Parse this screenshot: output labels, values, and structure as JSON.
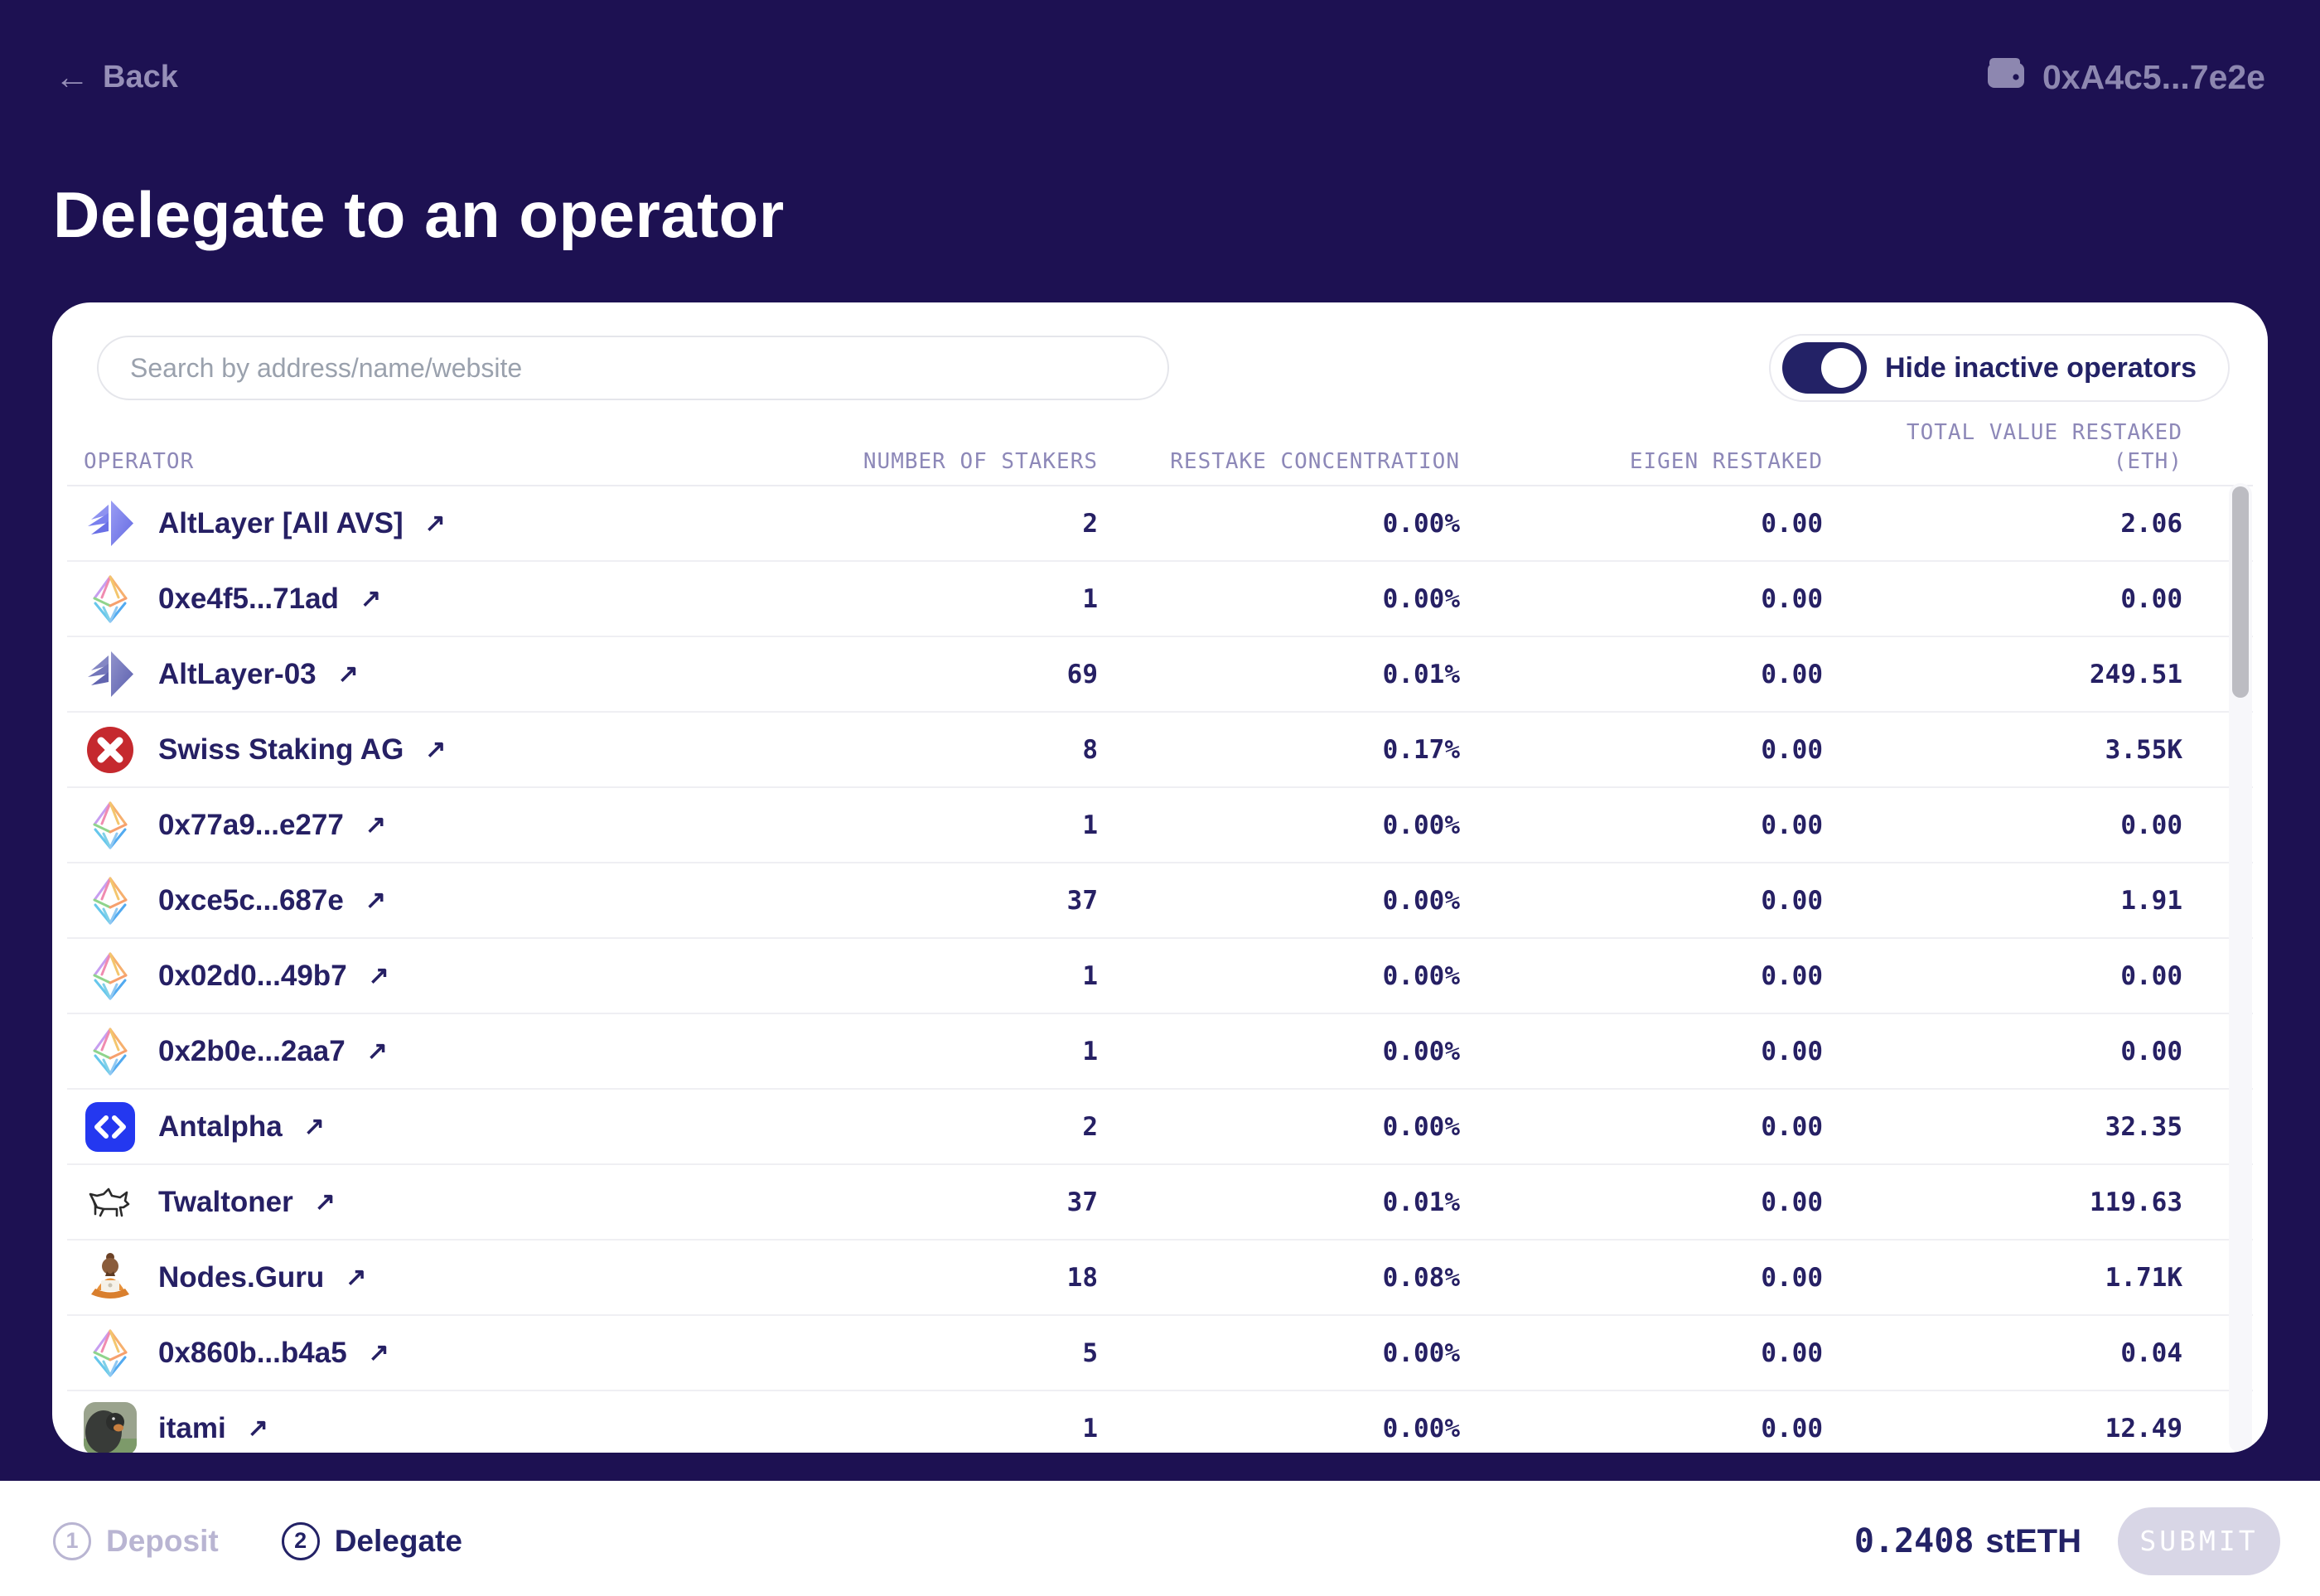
{
  "header": {
    "back_label": "Back",
    "wallet_address": "0xA4c5...7e2e"
  },
  "page_title": "Delegate to an operator",
  "search": {
    "placeholder": "Search by address/name/website"
  },
  "filter_toggle": {
    "label": "Hide inactive operators",
    "enabled": true
  },
  "table": {
    "columns": [
      "OPERATOR",
      "NUMBER OF STAKERS",
      "RESTAKE CONCENTRATION",
      "EIGEN RESTAKED",
      "TOTAL VALUE RESTAKED\n(ETH)"
    ],
    "rows": [
      {
        "name": "AltLayer [All AVS]",
        "icon": "altlayer-icon",
        "link_icon": "external-link-icon",
        "stakers": "2",
        "concentration": "0.00%",
        "eigen": "0.00",
        "total": "2.06"
      },
      {
        "name": "0xe4f5...71ad",
        "icon": "eth-icon",
        "link_icon": "external-link-icon",
        "stakers": "1",
        "concentration": "0.00%",
        "eigen": "0.00",
        "total": "0.00"
      },
      {
        "name": "AltLayer-03",
        "icon": "altlayer-alt-icon",
        "link_icon": "external-link-icon",
        "stakers": "69",
        "concentration": "0.01%",
        "eigen": "0.00",
        "total": "249.51"
      },
      {
        "name": "Swiss Staking AG",
        "icon": "swiss-staking-icon",
        "link_icon": "external-link-icon",
        "stakers": "8",
        "concentration": "0.17%",
        "eigen": "0.00",
        "total": "3.55K"
      },
      {
        "name": "0x77a9...e277",
        "icon": "eth-icon",
        "link_icon": "external-link-icon",
        "stakers": "1",
        "concentration": "0.00%",
        "eigen": "0.00",
        "total": "0.00"
      },
      {
        "name": "0xce5c...687e",
        "icon": "eth-icon",
        "link_icon": "external-link-icon",
        "stakers": "37",
        "concentration": "0.00%",
        "eigen": "0.00",
        "total": "1.91"
      },
      {
        "name": "0x02d0...49b7",
        "icon": "eth-icon",
        "link_icon": "external-link-icon",
        "stakers": "1",
        "concentration": "0.00%",
        "eigen": "0.00",
        "total": "0.00"
      },
      {
        "name": "0x2b0e...2aa7",
        "icon": "eth-icon",
        "link_icon": "external-link-icon",
        "stakers": "1",
        "concentration": "0.00%",
        "eigen": "0.00",
        "total": "0.00"
      },
      {
        "name": "Antalpha",
        "icon": "antalpha-icon",
        "link_icon": "external-link-icon",
        "stakers": "2",
        "concentration": "0.00%",
        "eigen": "0.00",
        "total": "32.35"
      },
      {
        "name": "Twaltoner",
        "icon": "twaltoner-icon",
        "link_icon": "external-link-icon",
        "stakers": "37",
        "concentration": "0.01%",
        "eigen": "0.00",
        "total": "119.63"
      },
      {
        "name": "Nodes.Guru",
        "icon": "nodes-guru-icon",
        "link_icon": "external-link-icon",
        "stakers": "18",
        "concentration": "0.08%",
        "eigen": "0.00",
        "total": "1.71K"
      },
      {
        "name": "0x860b...b4a5",
        "icon": "eth-icon",
        "link_icon": "external-link-icon",
        "stakers": "5",
        "concentration": "0.00%",
        "eigen": "0.00",
        "total": "0.04"
      },
      {
        "name": "itami",
        "icon": "itami-icon",
        "link_icon": "external-link-icon",
        "stakers": "1",
        "concentration": "0.00%",
        "eigen": "0.00",
        "total": "12.49"
      }
    ]
  },
  "footer": {
    "steps": [
      {
        "number": "1",
        "label": "Deposit",
        "active": false
      },
      {
        "number": "2",
        "label": "Delegate",
        "active": true
      }
    ],
    "balance_amount": "0.2408",
    "balance_unit": "stETH",
    "submit_label": "SUBMIT"
  },
  "colors": {
    "background": "#1d1152",
    "accent_navy": "#232266",
    "muted_lavender": "#8d87b0",
    "swiss_red": "#c5292e",
    "antalpha_blue": "#2438f0",
    "disabled_button": "#d8d6e6"
  }
}
